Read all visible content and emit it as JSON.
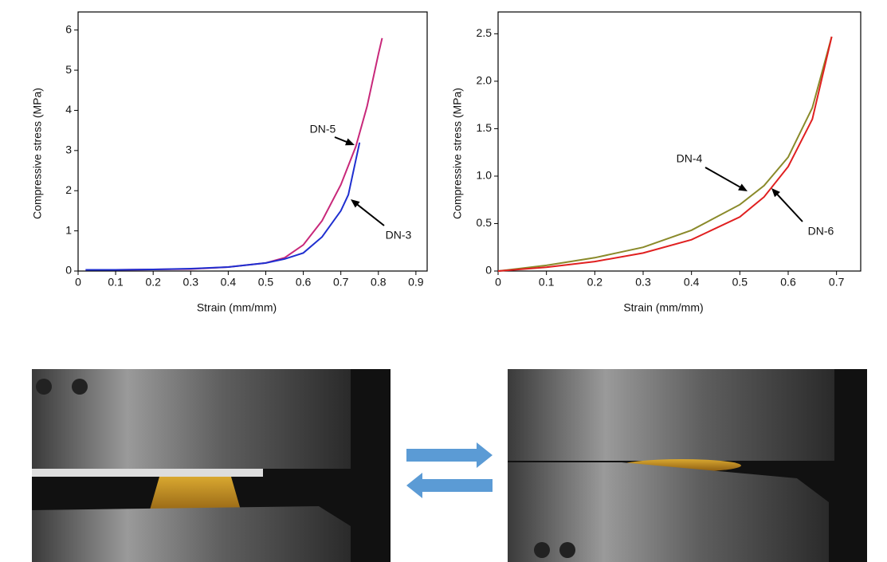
{
  "chart_data": [
    {
      "type": "line",
      "x_label": "Strain (mm/mm)",
      "y_label": "Compressive stress (MPa)",
      "xlim": [
        0,
        0.93
      ],
      "ylim": [
        0,
        6.45
      ],
      "xticks": [
        0,
        0.1,
        0.2,
        0.3,
        0.4,
        0.5,
        0.6,
        0.7,
        0.8,
        0.9
      ],
      "yticks": [
        0,
        1,
        2,
        3,
        4,
        5,
        6
      ],
      "series": [
        {
          "name": "DN-5",
          "color": "#c8287a",
          "x": [
            0.02,
            0.1,
            0.2,
            0.3,
            0.4,
            0.5,
            0.55,
            0.6,
            0.65,
            0.7,
            0.74,
            0.77,
            0.8,
            0.81
          ],
          "values": [
            0.03,
            0.03,
            0.04,
            0.05,
            0.1,
            0.2,
            0.33,
            0.65,
            1.25,
            2.15,
            3.1,
            4.1,
            5.4,
            5.8
          ]
        },
        {
          "name": "DN-3",
          "color": "#1f2fd0",
          "x": [
            0.02,
            0.1,
            0.2,
            0.3,
            0.4,
            0.5,
            0.55,
            0.6,
            0.65,
            0.7,
            0.72,
            0.75
          ],
          "values": [
            0.03,
            0.03,
            0.04,
            0.06,
            0.1,
            0.2,
            0.3,
            0.45,
            0.85,
            1.5,
            1.9,
            3.2
          ]
        }
      ]
    },
    {
      "type": "line",
      "x_label": "Strain (mm/mm)",
      "y_label": "Compressive stress (MPa)",
      "xlim": [
        0,
        0.75
      ],
      "ylim": [
        0,
        2.73
      ],
      "xticks": [
        0,
        0.1,
        0.2,
        0.3,
        0.4,
        0.5,
        0.6,
        0.7
      ],
      "yticks": [
        0,
        0.5,
        {
          "value": 1,
          "label": "1.0"
        },
        1.5,
        {
          "value": 2,
          "label": "2.0"
        },
        2.5
      ],
      "series": [
        {
          "name": "DN-4",
          "color": "#8a8a2a",
          "x": [
            0,
            0.1,
            0.2,
            0.3,
            0.4,
            0.5,
            0.55,
            0.6,
            0.65,
            0.69
          ],
          "values": [
            0,
            0.06,
            0.14,
            0.25,
            0.43,
            0.7,
            0.9,
            1.2,
            1.72,
            2.47
          ]
        },
        {
          "name": "DN-6",
          "color": "#e02020",
          "x": [
            0,
            0.1,
            0.2,
            0.3,
            0.4,
            0.5,
            0.55,
            0.6,
            0.65,
            0.69
          ],
          "values": [
            0,
            0.04,
            0.1,
            0.19,
            0.33,
            0.57,
            0.78,
            1.1,
            1.6,
            2.47
          ]
        }
      ]
    }
  ]
}
